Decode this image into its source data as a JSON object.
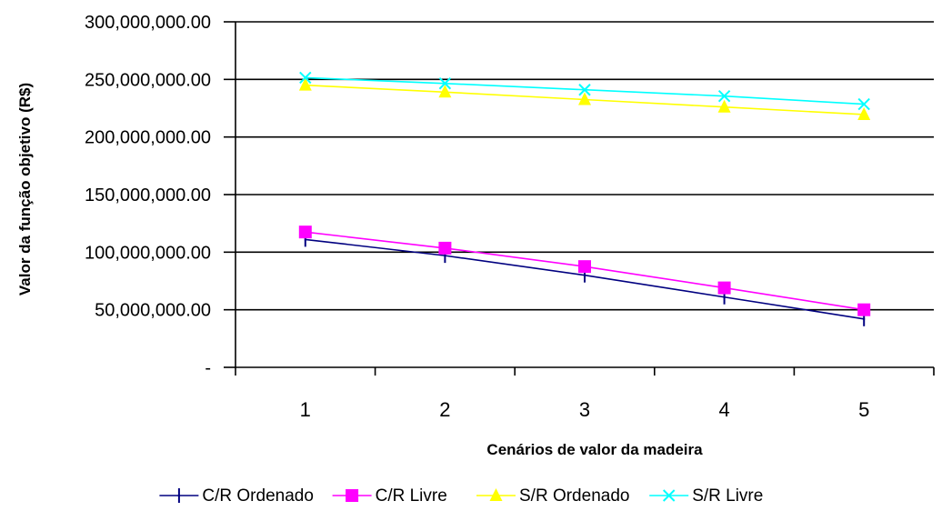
{
  "chart_data": {
    "type": "line",
    "title": "",
    "xlabel": "Cenários de valor da madeira",
    "ylabel": "Valor da função objetivo (R$)",
    "categories": [
      "1",
      "2",
      "3",
      "4",
      "5"
    ],
    "ylim": [
      0,
      300000000
    ],
    "y_ticks": [
      0,
      50000000,
      100000000,
      150000000,
      200000000,
      250000000,
      300000000
    ],
    "y_tick_labels": [
      "-",
      "50,000,000.00",
      "100,000,000.00",
      "150,000,000.00",
      "200,000,000.00",
      "250,000,000.00",
      "300,000,000.00"
    ],
    "grid": true,
    "legend_position": "bottom",
    "series": [
      {
        "name": "C/R Ordenado",
        "color": "#000080",
        "marker": "plus",
        "values": [
          111000000,
          97000000,
          80000000,
          61000000,
          42000000
        ]
      },
      {
        "name": "C/R Livre",
        "color": "#ff00ff",
        "marker": "square",
        "values": [
          117500000,
          103500000,
          87500000,
          69000000,
          50000000
        ]
      },
      {
        "name": "S/R Ordenado",
        "color": "#ffff00",
        "marker": "triangle",
        "values": [
          245000000,
          239000000,
          232500000,
          226000000,
          219500000
        ]
      },
      {
        "name": "S/R Livre",
        "color": "#00ffff",
        "marker": "x",
        "values": [
          251500000,
          246500000,
          241000000,
          235500000,
          228500000
        ]
      }
    ]
  }
}
